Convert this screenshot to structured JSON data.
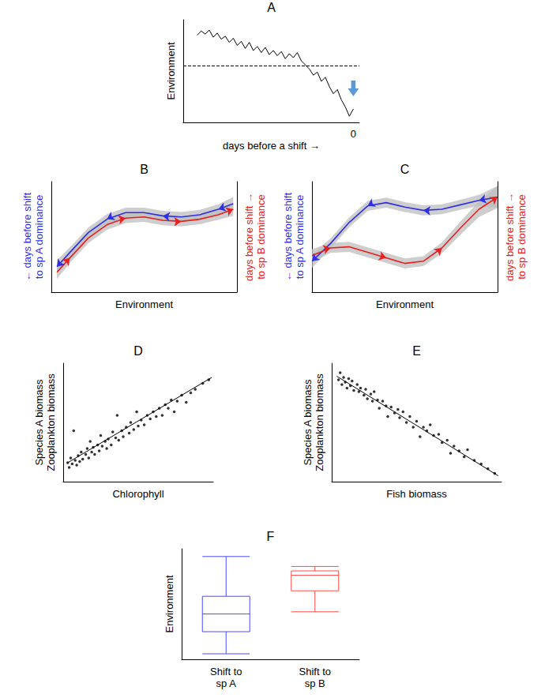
{
  "chart_data": [
    {
      "title": "A",
      "type": "line",
      "xlabel": "days before a shift →",
      "ylabel": "Environment",
      "x": [
        -78,
        -76,
        -74,
        -72,
        -70,
        -68,
        -66,
        -64,
        -62,
        -60,
        -58,
        -56,
        -54,
        -52,
        -50,
        -48,
        -46,
        -44,
        -42,
        -40,
        -38,
        -36,
        -34,
        -32,
        -30,
        -28,
        -26,
        -24,
        -22,
        -20,
        -18,
        -16,
        -14,
        -12,
        -10,
        -8,
        -6,
        -4,
        -2,
        0
      ],
      "values": [
        8.5,
        8.9,
        8.6,
        9.0,
        8.3,
        8.7,
        8.1,
        8.4,
        7.8,
        8.2,
        7.5,
        7.9,
        7.2,
        7.8,
        7.0,
        7.4,
        6.8,
        7.3,
        6.6,
        7.0,
        6.5,
        6.9,
        6.2,
        6.7,
        6.3,
        6.8,
        6.0,
        5.6,
        5.2,
        4.6,
        4.9,
        4.0,
        4.4,
        3.5,
        2.8,
        3.2,
        2.2,
        1.5,
        0.6,
        1.3
      ],
      "color": "#000000",
      "threshold": 5.5,
      "xlim": [
        -85,
        3
      ],
      "ylim": [
        0,
        10
      ],
      "xticks": [
        0
      ],
      "tick_labels": "x"
    },
    {
      "title": "B",
      "type": "line",
      "xlabel": "Environment",
      "ylabel": "← days before shift\nto sp A dominance",
      "y2label": "days before shift →\nto sp B dominance",
      "xlim": [
        0,
        10
      ],
      "ylim": [
        0,
        10
      ],
      "y2lim": [
        0,
        10
      ],
      "tick_labels": false,
      "marker": "arrow",
      "series": [
        {
          "color": "#2f2fe6",
          "x": [
            9.8,
            9,
            8,
            7,
            6,
            5,
            4,
            3,
            2,
            1,
            0.3
          ],
          "values": [
            8.0,
            7.5,
            7.0,
            6.8,
            6.9,
            7.2,
            7.2,
            6.6,
            5.4,
            3.6,
            2.3
          ],
          "lower": [
            7.4,
            7.05,
            6.55,
            6.35,
            6.45,
            6.75,
            6.75,
            6.15,
            4.95,
            3.15,
            1.7
          ],
          "upper": [
            8.6,
            7.95,
            7.45,
            7.25,
            7.35,
            7.65,
            7.65,
            7.05,
            5.85,
            4.05,
            2.9
          ]
        },
        {
          "color": "#e62020",
          "axis": "y2",
          "x": [
            0.3,
            1,
            2,
            3,
            4,
            5,
            6,
            7,
            8,
            9,
            9.8
          ],
          "values": [
            1.8,
            3.1,
            4.9,
            6.1,
            6.7,
            6.8,
            6.5,
            6.4,
            6.6,
            7.0,
            7.5
          ],
          "lower": [
            1.2,
            2.65,
            4.45,
            5.65,
            6.25,
            6.35,
            6.05,
            5.95,
            6.15,
            6.55,
            6.9
          ],
          "upper": [
            2.4,
            3.55,
            5.35,
            6.55,
            7.15,
            7.25,
            6.95,
            6.85,
            7.05,
            7.45,
            8.1
          ]
        }
      ]
    },
    {
      "title": "C",
      "type": "line",
      "xlabel": "Environment",
      "ylabel": "← days before shift\nto sp A dominance",
      "y2label": "days before shift →\nto sp B dominance",
      "xlim": [
        0,
        10
      ],
      "ylim": [
        0,
        10
      ],
      "y2lim": [
        0,
        10
      ],
      "tick_labels": false,
      "marker": "arrow",
      "series": [
        {
          "color": "#2f2fe6",
          "x": [
            10,
            9,
            8,
            7,
            6,
            5,
            4,
            3,
            2,
            1,
            0
          ],
          "values": [
            8.6,
            8.3,
            7.9,
            7.5,
            7.4,
            7.7,
            8.1,
            7.8,
            6.3,
            4.4,
            2.8
          ],
          "lower": [
            7.6,
            7.8,
            7.45,
            7.05,
            6.95,
            7.25,
            7.65,
            7.35,
            5.85,
            3.95,
            2.2
          ],
          "upper": [
            9.6,
            8.8,
            8.35,
            7.95,
            7.85,
            8.15,
            8.55,
            8.25,
            6.75,
            4.85,
            3.4
          ]
        },
        {
          "color": "#e62020",
          "axis": "y2",
          "x": [
            0,
            1,
            2,
            3,
            4,
            5,
            6,
            7,
            8,
            9,
            10
          ],
          "values": [
            3.3,
            4.0,
            4.1,
            3.6,
            3.1,
            2.6,
            2.8,
            4.0,
            5.8,
            7.5,
            8.6
          ],
          "lower": [
            2.7,
            3.55,
            3.65,
            3.15,
            2.65,
            2.15,
            2.35,
            3.5,
            5.2,
            6.8,
            7.6
          ],
          "upper": [
            3.9,
            4.45,
            4.55,
            4.05,
            3.55,
            3.05,
            3.25,
            4.5,
            6.4,
            8.2,
            9.6
          ]
        }
      ]
    },
    {
      "title": "D",
      "type": "scatter",
      "xlabel": "Chlorophyll",
      "ylabel": "Species A biomass\nZooplankton biomass",
      "x": [
        0.3,
        0.4,
        0.5,
        0.6,
        0.7,
        0.8,
        0.9,
        1.0,
        1.1,
        1.2,
        1.3,
        1.5,
        1.6,
        1.7,
        1.8,
        1.9,
        2.0,
        2.1,
        2.3,
        2.4,
        2.5,
        2.6,
        2.8,
        2.9,
        3.0,
        3.2,
        3.3,
        3.5,
        3.6,
        3.7,
        3.9,
        4.0,
        4.2,
        4.4,
        4.5,
        4.7,
        4.9,
        5.0,
        5.2,
        5.4,
        5.6,
        5.8,
        6.0,
        6.2,
        6.4,
        6.6,
        6.8,
        7.0,
        7.2,
        7.4,
        7.6,
        7.9,
        8.2,
        8.5,
        8.8,
        9.3,
        9.7
      ],
      "values": [
        1.6,
        1.2,
        2.0,
        1.5,
        4.3,
        1.8,
        1.4,
        2.2,
        1.7,
        2.5,
        1.9,
        2.3,
        2.8,
        2.0,
        3.4,
        2.5,
        2.9,
        2.3,
        3.1,
        2.6,
        3.9,
        3.0,
        3.4,
        2.8,
        3.6,
        3.1,
        4.2,
        3.7,
        5.6,
        3.5,
        4.3,
        3.8,
        4.6,
        4.1,
        5.0,
        4.4,
        5.9,
        4.7,
        5.2,
        4.8,
        5.6,
        5.3,
        5.9,
        5.5,
        6.2,
        5.6,
        6.5,
        6.2,
        6.9,
        5.9,
        6.8,
        7.3,
        6.7,
        7.5,
        7.8,
        8.3,
        8.6
      ],
      "fit": {
        "x": [
          0.3,
          9.9
        ],
        "values": [
          1.6,
          8.8
        ]
      },
      "color": "#000000",
      "xlim": [
        0,
        10
      ],
      "ylim": [
        0,
        10
      ],
      "tick_labels": false
    },
    {
      "title": "E",
      "type": "scatter",
      "xlabel": "Fish biomass",
      "ylabel": "Species A biomass\nZooplankton biomass",
      "x": [
        0.4,
        0.5,
        0.6,
        0.7,
        0.8,
        0.9,
        1.0,
        1.1,
        1.2,
        1.3,
        1.5,
        1.6,
        1.7,
        1.9,
        2.0,
        2.1,
        2.3,
        2.4,
        2.5,
        2.7,
        2.8,
        3.0,
        3.2,
        3.3,
        3.5,
        3.7,
        3.9,
        4.0,
        4.2,
        4.4,
        4.6,
        4.8,
        5.0,
        5.2,
        5.4,
        5.6,
        5.8,
        6.0,
        6.3,
        6.5,
        6.8,
        7.0,
        7.2,
        7.5,
        7.8,
        8.0,
        8.4,
        8.8,
        9.2,
        9.6
      ],
      "values": [
        8.6,
        9.2,
        8.2,
        8.8,
        8.4,
        7.9,
        8.7,
        8.1,
        8.5,
        7.7,
        8.2,
        7.6,
        7.9,
        7.3,
        7.8,
        7.0,
        7.4,
        6.8,
        7.6,
        6.9,
        6.2,
        6.8,
        6.4,
        5.5,
        6.3,
        5.8,
        6.1,
        5.4,
        5.9,
        5.0,
        5.5,
        4.6,
        5.1,
        3.8,
        4.6,
        4.3,
        4.8,
        3.9,
        4.0,
        3.3,
        3.5,
        2.4,
        3.0,
        2.6,
        2.1,
        2.7,
        1.8,
        1.5,
        1.1,
        0.7
      ],
      "fit": {
        "x": [
          0.3,
          9.8
        ],
        "values": [
          8.9,
          0.5
        ]
      },
      "color": "#000000",
      "xlim": [
        0,
        10
      ],
      "ylim": [
        0,
        10
      ],
      "tick_labels": false
    },
    {
      "title": "F",
      "type": "boxplot",
      "ylabel": "Environment",
      "categories": [
        "Shift to\nsp A",
        "Shift to\nsp B"
      ],
      "values": [
        [
          0.5,
          2.5,
          4.1,
          5.7,
          9.3
        ],
        [
          4.3,
          6.2,
          7.6,
          8.0,
          8.4
        ]
      ],
      "colors": [
        "#4a4aff",
        "#ff4a4a"
      ],
      "ylim": [
        0,
        10
      ],
      "tick_labels": "x"
    }
  ]
}
